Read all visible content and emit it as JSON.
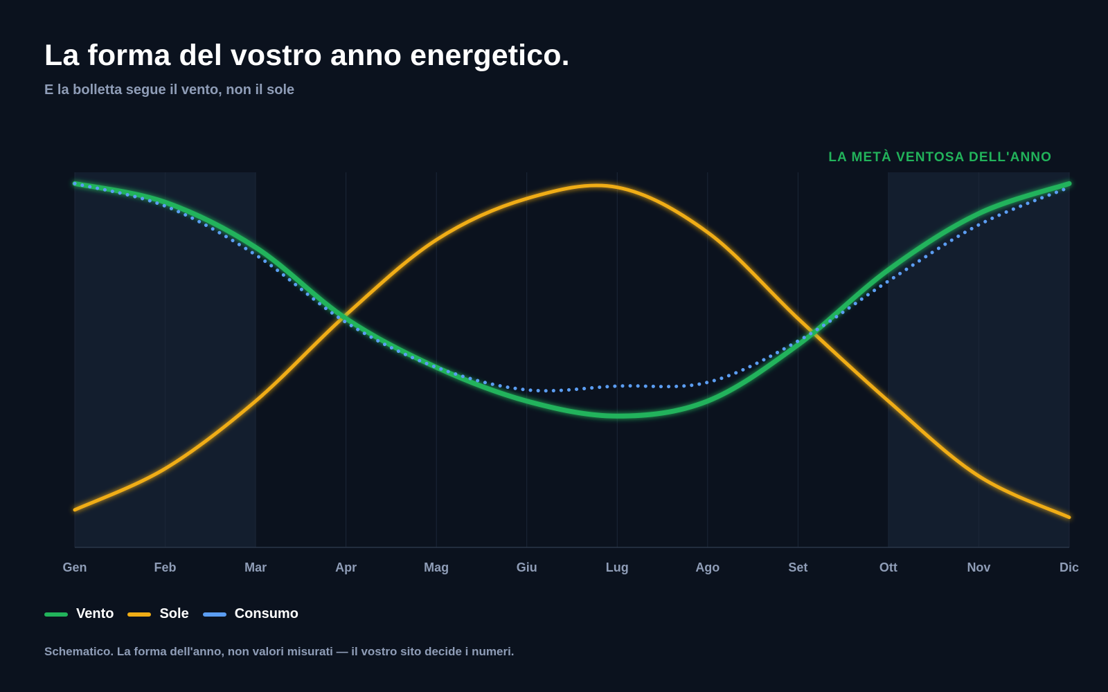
{
  "header": {
    "title": "La forma del vostro anno energetico.",
    "subtitle": "E la bolletta segue il vento, non il sole"
  },
  "annotation": "LA METÀ VENTOSA DELL'ANNO",
  "legend": [
    {
      "label": "Vento",
      "color": "#22b35b"
    },
    {
      "label": "Sole",
      "color": "#f0ad16"
    },
    {
      "label": "Consumo",
      "color": "#5b9df2"
    }
  ],
  "footnote": "Schematico. La forma dell'anno, non valori misurati — il vostro sito decide i numeri.",
  "chart_data": {
    "type": "line",
    "title": "La forma del vostro anno energetico.",
    "subtitle": "E la bolletta segue il vento, non il sole",
    "categories": [
      "Gen",
      "Feb",
      "Mar",
      "Apr",
      "Mag",
      "Giu",
      "Lug",
      "Ago",
      "Set",
      "Ott",
      "Nov",
      "Dic"
    ],
    "ylim": [
      0,
      100
    ],
    "grid": "vertical",
    "legend_position": "bottom-left",
    "highlight_bands": [
      {
        "from": "Gen",
        "to": "Mar",
        "label": "LA METÀ VENTOSA DELL'ANNO"
      },
      {
        "from": "Ott",
        "to": "Dic",
        "label": "LA METÀ VENTOSA DELL'ANNO"
      }
    ],
    "series": [
      {
        "name": "Vento",
        "color": "#22b35b",
        "style": "solid",
        "values": [
          97,
          92,
          80,
          61,
          48,
          39,
          35,
          39,
          54,
          74,
          89,
          97
        ]
      },
      {
        "name": "Sole",
        "color": "#f0ad16",
        "style": "solid",
        "values": [
          10,
          21,
          39,
          62,
          82,
          93,
          96,
          84,
          61,
          39,
          19,
          8
        ]
      },
      {
        "name": "Consumo",
        "color": "#5b9df2",
        "style": "dotted",
        "values": [
          97,
          91,
          78,
          60,
          48,
          42,
          43,
          44,
          55,
          71,
          86,
          96
        ]
      }
    ]
  }
}
